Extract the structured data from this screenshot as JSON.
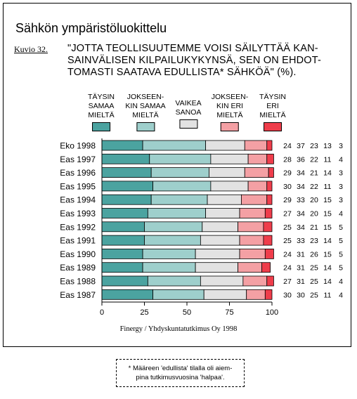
{
  "title": "Sähkön ympäristöluokittelu",
  "figure_label": "Kuvio 32.",
  "question_lines": [
    "\"JOTTA TEOLLISUUTEMME VOISI SÄILYTTÄÄ KAN-",
    "SAINVÄLISEN KILPAILUKYKYNSÄ, SEN ON EHDOT-",
    "TOMASTI SAATAVA EDULLISTA* SÄHKÖÄ\" (%)."
  ],
  "source": "Finergy / Yhdyskuntatutkimus Oy 1998",
  "footnote_lines": [
    "* Määreen 'edullista' tilalla oli aiem-",
    "pina tutkimusvuosina 'halpaa'."
  ],
  "chart_data": {
    "type": "bar",
    "orientation": "horizontal",
    "stacked": true,
    "xlim": [
      0,
      100
    ],
    "x_ticks": [
      "0",
      "25",
      "50",
      "75",
      "100"
    ],
    "grid": false,
    "legend_position": "top",
    "categories": [
      "Eko 1998",
      "Eas 1997",
      "Eas 1996",
      "Eas 1995",
      "Eas 1994",
      "Eas 1993",
      "Eas 1992",
      "Eas 1991",
      "Eas 1990",
      "Eas 1989",
      "Eas 1988",
      "Eas 1987"
    ],
    "series": [
      {
        "name": "TÄYSIN SAMAA MIELTÄ",
        "label_lines": [
          "TÄYSIN",
          "SAMAA",
          "MIELTÄ"
        ],
        "color": "#4ba3a0",
        "values": [
          24,
          28,
          29,
          30,
          29,
          27,
          25,
          25,
          24,
          24,
          27,
          30
        ]
      },
      {
        "name": "JOKSEENKIN SAMAA MIELTÄ",
        "label_lines": [
          "JOKSEEN-",
          "KIN SAMAA",
          "MIELTÄ"
        ],
        "color": "#9ecfcc",
        "values": [
          37,
          36,
          34,
          34,
          33,
          34,
          34,
          33,
          31,
          31,
          31,
          30
        ]
      },
      {
        "name": "VAIKEA SANOA",
        "label_lines": [
          "VAIKEA",
          "SANOA"
        ],
        "color": "#e2e2e2",
        "values": [
          23,
          22,
          21,
          22,
          20,
          20,
          21,
          23,
          26,
          25,
          25,
          25
        ]
      },
      {
        "name": "JOKSEENKIN ERI MIELTÄ",
        "label_lines": [
          "JOKSEEN-",
          "KIN ERI",
          "MIELTÄ"
        ],
        "color": "#f4a0a4",
        "values": [
          13,
          11,
          14,
          11,
          15,
          15,
          15,
          14,
          15,
          14,
          14,
          11
        ]
      },
      {
        "name": "TÄYSIN ERI MIELTÄ",
        "label_lines": [
          "TÄYSIN",
          "ERI",
          "MIELTÄ"
        ],
        "color": "#ef3d4b",
        "values": [
          3,
          4,
          3,
          3,
          3,
          4,
          5,
          5,
          5,
          5,
          4,
          4
        ]
      }
    ]
  }
}
